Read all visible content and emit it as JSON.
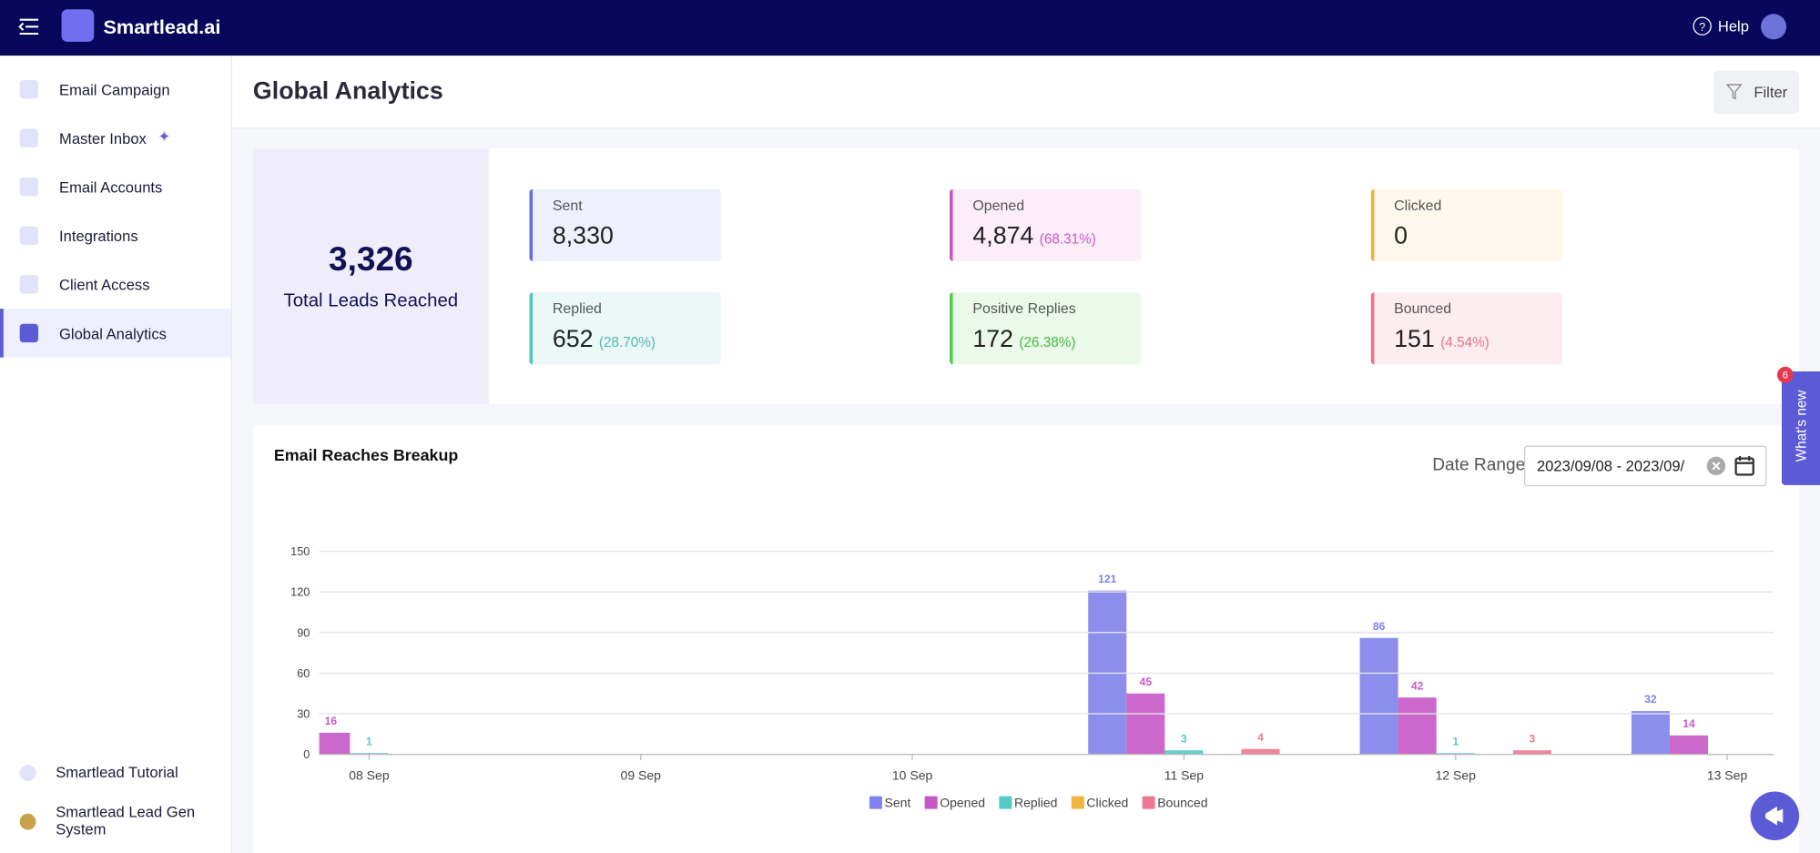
{
  "header": {
    "brand": "Smartlead.ai",
    "help": "Help"
  },
  "sidebar": {
    "items": [
      "Email Campaign",
      "Master Inbox",
      "Email Accounts",
      "Integrations",
      "Client Access",
      "Global Analytics"
    ],
    "footer": [
      "Smartlead Tutorial",
      "Smartlead Lead Gen System"
    ]
  },
  "page": {
    "title": "Global Analytics",
    "filter": "Filter"
  },
  "summary": {
    "total": "3,326",
    "total_label": "Total Leads Reached",
    "tiles": [
      {
        "label": "Sent",
        "value": "8,330"
      },
      {
        "label": "Opened",
        "value": "4,874",
        "pct": "(68.31%)"
      },
      {
        "label": "Clicked",
        "value": "0"
      },
      {
        "label": "Replied",
        "value": "652",
        "pct": "(28.70%)"
      },
      {
        "label": "Positive Replies",
        "value": "172",
        "pct": "(26.38%)"
      },
      {
        "label": "Bounced",
        "value": "151",
        "pct": "(4.54%)"
      }
    ]
  },
  "chart_data": {
    "type": "bar",
    "title": "Email Reaches Breakup",
    "date_range_label": "Date Range:",
    "date_range": "2023/09/08 - 2023/09/",
    "categories": [
      "08 Sep",
      "09 Sep",
      "10 Sep",
      "11 Sep",
      "12 Sep",
      "13 Sep"
    ],
    "series": [
      {
        "name": "Sent",
        "color": "#7f82ea",
        "values": [
          null,
          0,
          0,
          121,
          86,
          32
        ]
      },
      {
        "name": "Opened",
        "color": "#c658c6",
        "values": [
          16,
          0,
          0,
          45,
          42,
          14
        ]
      },
      {
        "name": "Replied",
        "color": "#55c9c6",
        "values": [
          1,
          0,
          0,
          3,
          1,
          0
        ]
      },
      {
        "name": "Clicked",
        "color": "#f0b63c",
        "values": [
          0,
          0,
          0,
          0,
          0,
          0
        ]
      },
      {
        "name": "Bounced",
        "color": "#ee7891",
        "values": [
          0,
          0,
          0,
          4,
          3,
          0
        ]
      }
    ],
    "ylim": [
      0,
      150
    ],
    "yticks": [
      0,
      30,
      60,
      90,
      120,
      150
    ],
    "grid": true
  },
  "whats_new": {
    "label": "What's new",
    "badge": "6"
  }
}
